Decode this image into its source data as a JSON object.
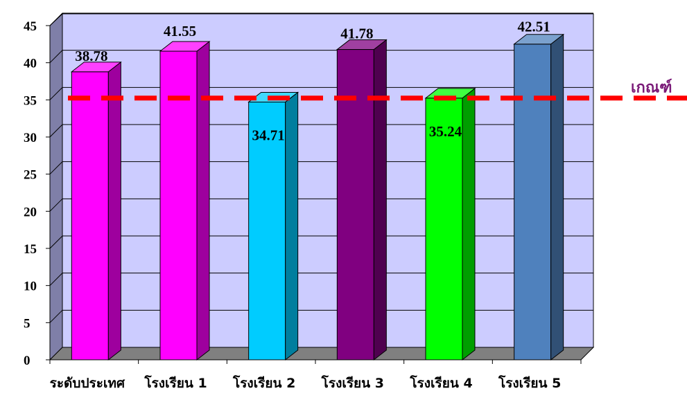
{
  "chart_data": {
    "type": "bar",
    "categories": [
      "ระดับประเทศ",
      "โรงเรียน 1",
      "โรงเรียน 2",
      "โรงเรียน 3",
      "โรงเรียน 4",
      "โรงเรียน 5"
    ],
    "values": [
      38.78,
      41.55,
      34.71,
      41.78,
      35.24,
      42.51
    ],
    "value_labels": [
      "38.78",
      "41.55",
      "34.71",
      "41.78",
      "35.24",
      "42.51"
    ],
    "bar_colors": [
      "#ff00ff",
      "#ff00ff",
      "#00ccff",
      "#800080",
      "#00ff00",
      "#4f81bd"
    ],
    "ylim": [
      0,
      45
    ],
    "yticks": [
      0,
      5,
      10,
      15,
      20,
      25,
      30,
      35,
      40,
      45
    ],
    "grid": true,
    "plot_background": "#ccccff",
    "reference_line": {
      "value": 34.5,
      "label": "เกณฑ์",
      "color": "#ff0000",
      "label_color": "#7a1a78"
    }
  }
}
